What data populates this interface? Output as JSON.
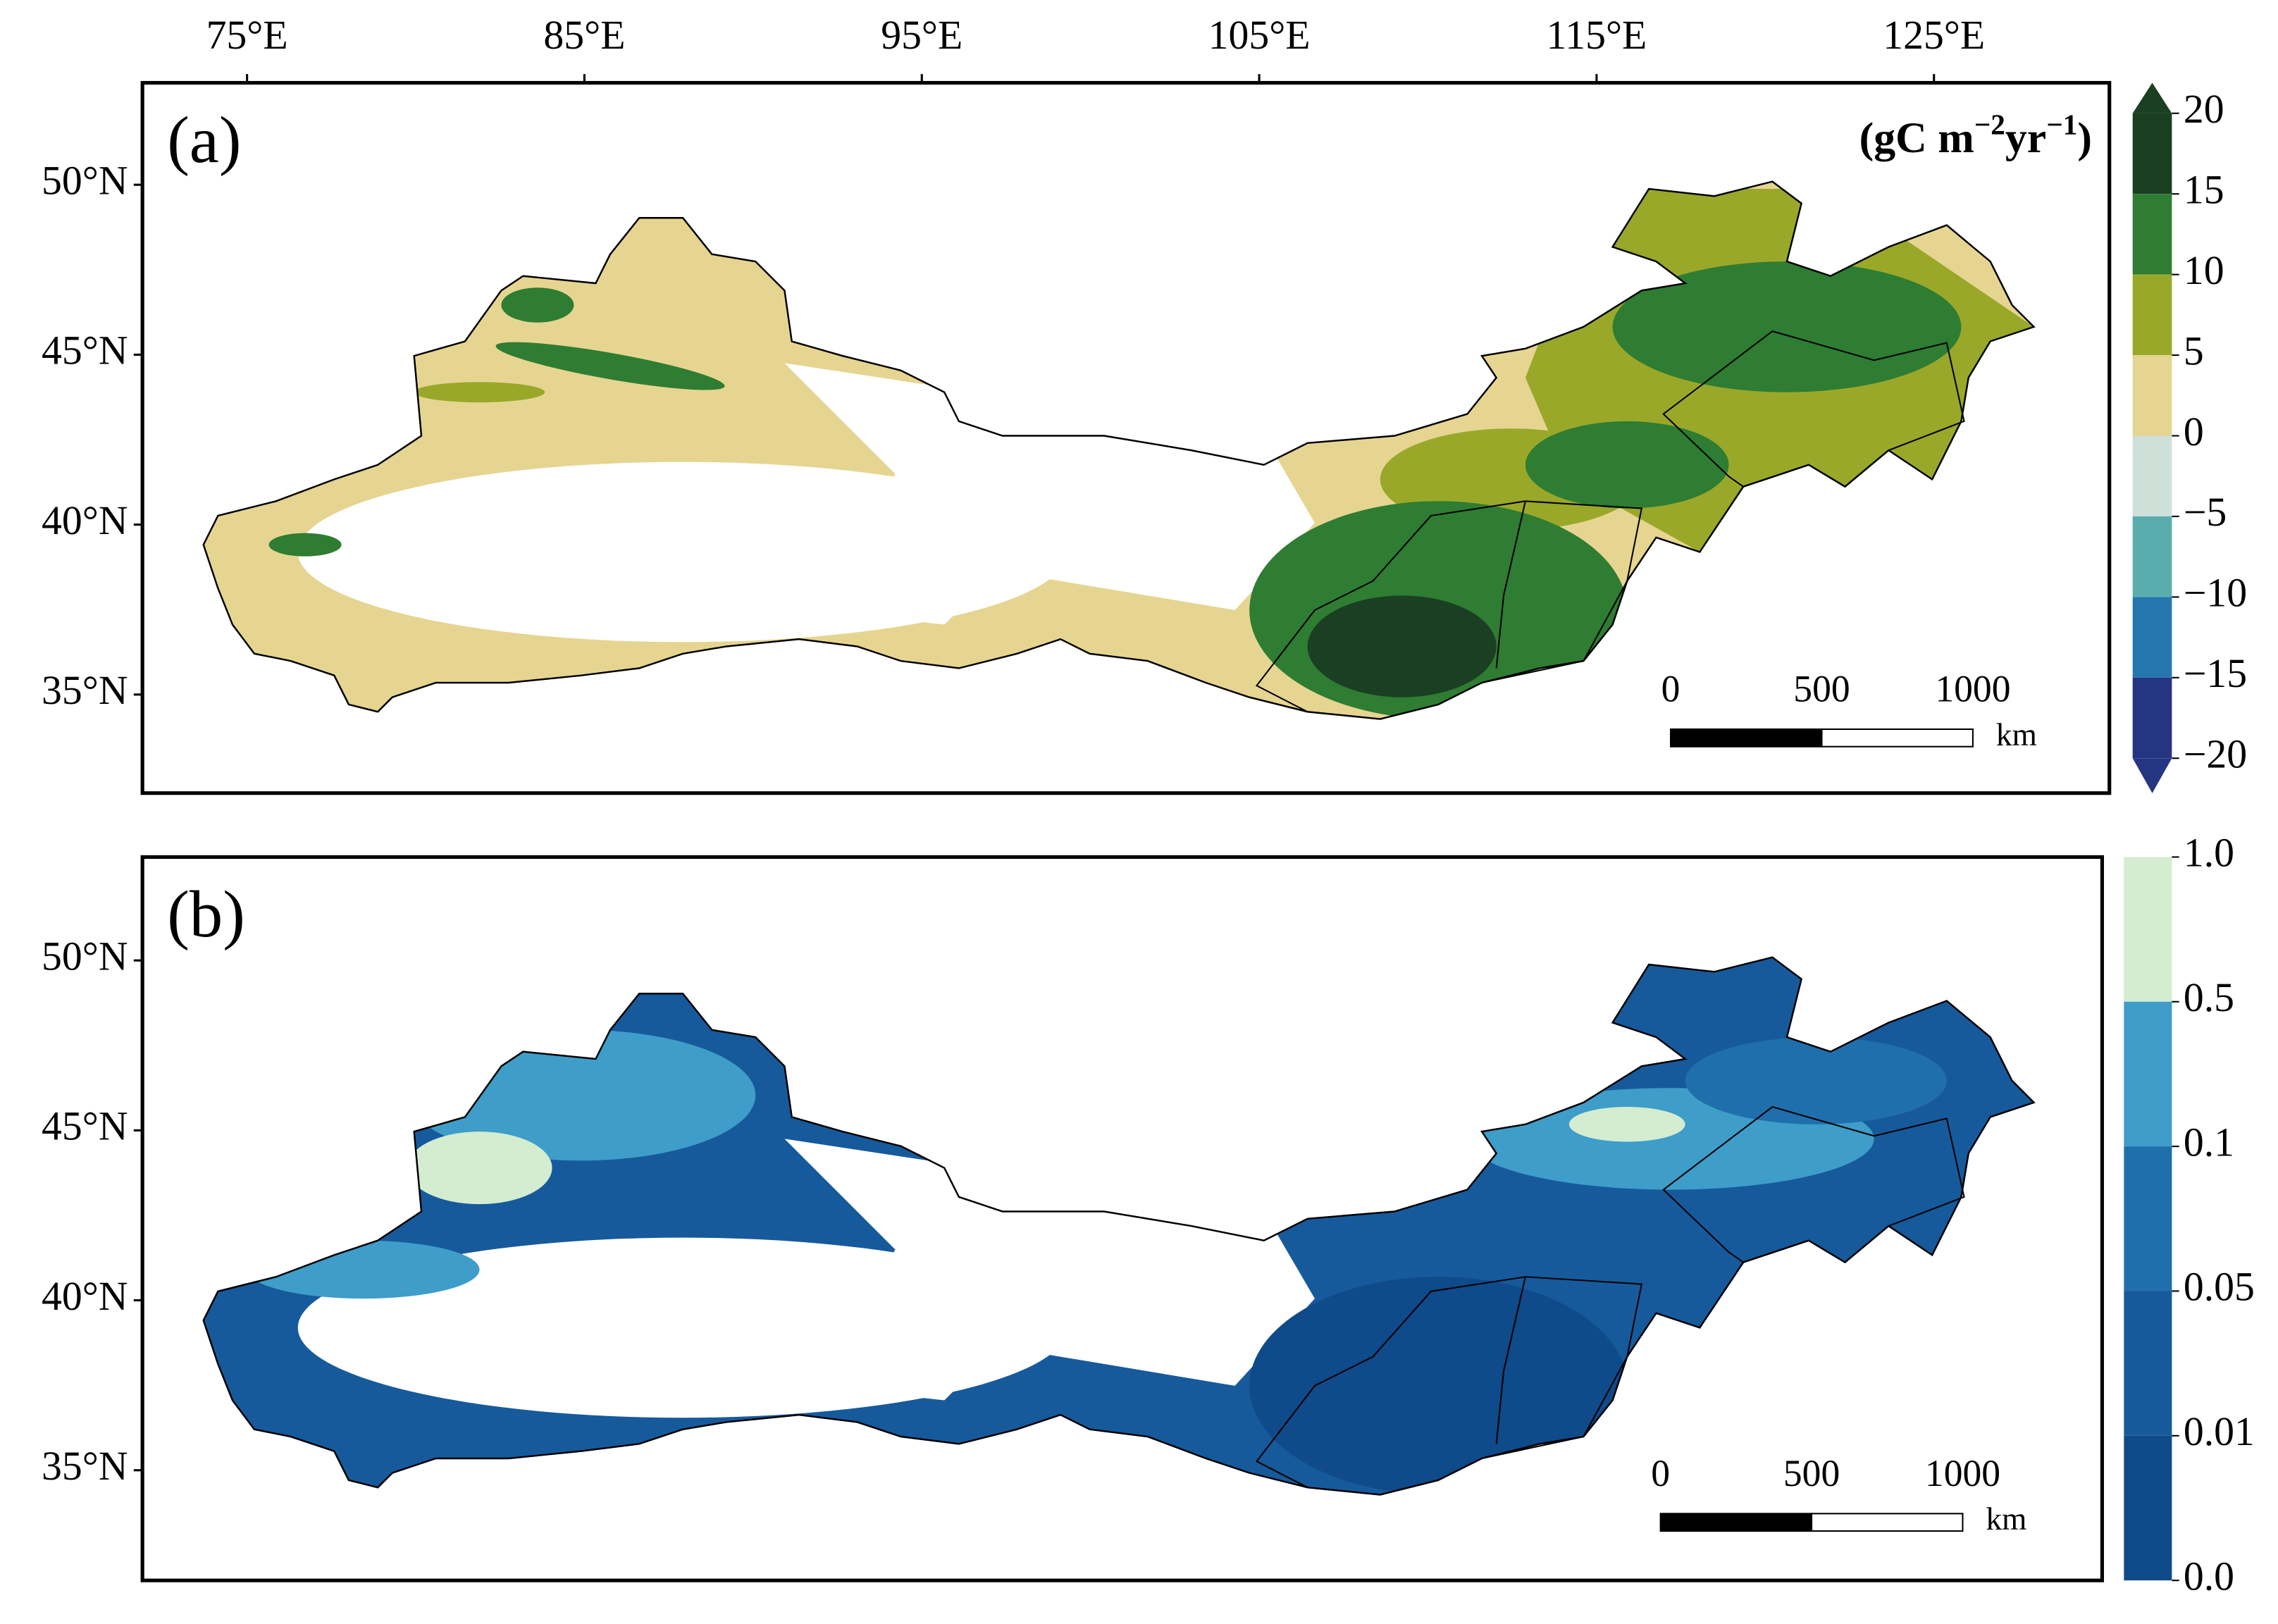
{
  "panels": [
    {
      "label": "(a)",
      "unit_parts": [
        "(gC m",
        "−2",
        "yr",
        "−1",
        ")"
      ],
      "lonlim": [
        71.9,
        130.2
      ],
      "latlim": [
        32.1,
        53
      ],
      "lon_ticks": [
        {
          "value": 75,
          "label": "75°E"
        },
        {
          "value": 85,
          "label": "85°E"
        },
        {
          "value": 95,
          "label": "95°E"
        },
        {
          "value": 105,
          "label": "105°E"
        },
        {
          "value": 115,
          "label": "115°E"
        },
        {
          "value": 125,
          "label": "125°E"
        }
      ],
      "lat_ticks": [
        {
          "value": 50,
          "label": "50°N"
        },
        {
          "value": 45,
          "label": "45°N"
        },
        {
          "value": 40,
          "label": "40°N"
        },
        {
          "value": 35,
          "label": "35°N"
        }
      ],
      "colorbar": {
        "ticks": [
          20,
          15,
          10,
          5,
          0,
          {
            "value": -5,
            "label": "−5"
          },
          {
            "value": -10,
            "label": "−10"
          },
          {
            "value": -15,
            "label": "−15"
          },
          {
            "value": -20,
            "label": "−20"
          }
        ],
        "colors": [
          "#1b3f22",
          "#2e7d32",
          "#9aa82a",
          "#e6d591",
          "#cfe0d8",
          "#5aadad",
          "#2677b0",
          "#253582"
        ],
        "extend": "both"
      },
      "scale_bar": {
        "ticks": [
          0,
          500,
          1000
        ],
        "unit": "km"
      }
    },
    {
      "label": "(b)",
      "lonlim": [
        71.9,
        130.2
      ],
      "latlim": [
        32.1,
        53
      ],
      "lat_ticks": [
        {
          "value": 50,
          "label": "50°N"
        },
        {
          "value": 45,
          "label": "45°N"
        },
        {
          "value": 40,
          "label": "40°N"
        },
        {
          "value": 35,
          "label": "35°N"
        }
      ],
      "colorbar": {
        "ticks": [
          {
            "value": 1,
            "label": "1.0"
          },
          0.5,
          0.1,
          0.05,
          0.01,
          {
            "value": 0,
            "label": "0.0"
          }
        ],
        "colors": [
          "#d4ecd0",
          "#3e9dc9",
          "#1f6fad",
          "#165a9c",
          "#0f4a8a"
        ],
        "extend": "neither"
      },
      "scale_bar": {
        "ticks": [
          0,
          500,
          1000
        ],
        "unit": "km"
      }
    }
  ]
}
